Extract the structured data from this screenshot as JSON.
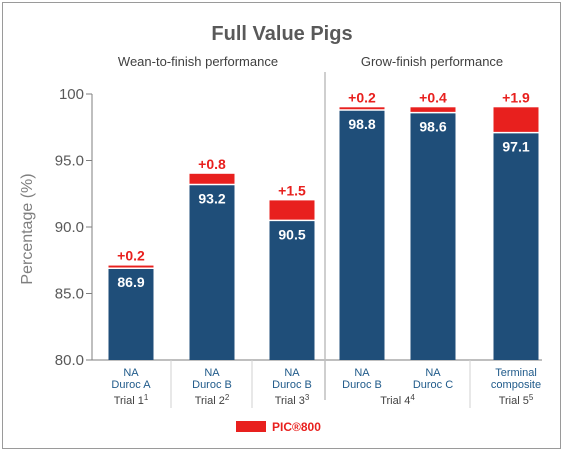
{
  "chart_data": {
    "type": "bar",
    "title": "Full Value Pigs",
    "groups": [
      {
        "label": "Wean-to-finish performance",
        "categories": [
          0,
          1,
          2
        ]
      },
      {
        "label": "Grow-finish performance",
        "categories": [
          3,
          4,
          5
        ]
      }
    ],
    "categories": [
      {
        "name_lines": [
          "NA",
          "Duroc A"
        ],
        "trial": "Trial 1",
        "trial_sup": "1"
      },
      {
        "name_lines": [
          "NA",
          "Duroc B"
        ],
        "trial": "Trial 2",
        "trial_sup": "2"
      },
      {
        "name_lines": [
          "NA",
          "Duroc B"
        ],
        "trial": "Trial 3",
        "trial_sup": "3"
      },
      {
        "name_lines": [
          "NA",
          "Duroc B"
        ],
        "trial": "",
        "trial_sup": ""
      },
      {
        "name_lines": [
          "NA",
          "Duroc C"
        ],
        "trial": "",
        "trial_sup": ""
      },
      {
        "name_lines": [
          "Terminal",
          "composite"
        ],
        "trial": "Trial 5",
        "trial_sup": "5"
      }
    ],
    "shared_trial_labels": [
      {
        "text": "Trial 4",
        "sup": "4",
        "spans": [
          3,
          4
        ]
      }
    ],
    "series": [
      {
        "values": [
          86.9,
          93.2,
          90.5,
          98.8,
          98.6,
          97.1
        ],
        "labels": [
          "86.9",
          "93.2",
          "90.5",
          "98.8",
          "98.6",
          "97.1"
        ],
        "color": "#1f4e79"
      },
      {
        "name": "PIC®800",
        "values": [
          0.2,
          0.8,
          1.5,
          0.2,
          0.4,
          1.9
        ],
        "labels": [
          "+0.2",
          "+0.8",
          "+1.5",
          "+0.2",
          "+0.4",
          "+1.9"
        ],
        "color": "#e8201e"
      }
    ],
    "ylabel": "Percentage (%)",
    "ylim": [
      80,
      100
    ],
    "yticks": [
      80.0,
      85.0,
      90.0,
      95.0,
      100
    ],
    "ytick_labels": [
      "80.0",
      "85.0",
      "90.0",
      "95.0",
      "100"
    ],
    "legend": {
      "name": "PIC®800",
      "position": "bottom-center"
    },
    "grid": false
  }
}
